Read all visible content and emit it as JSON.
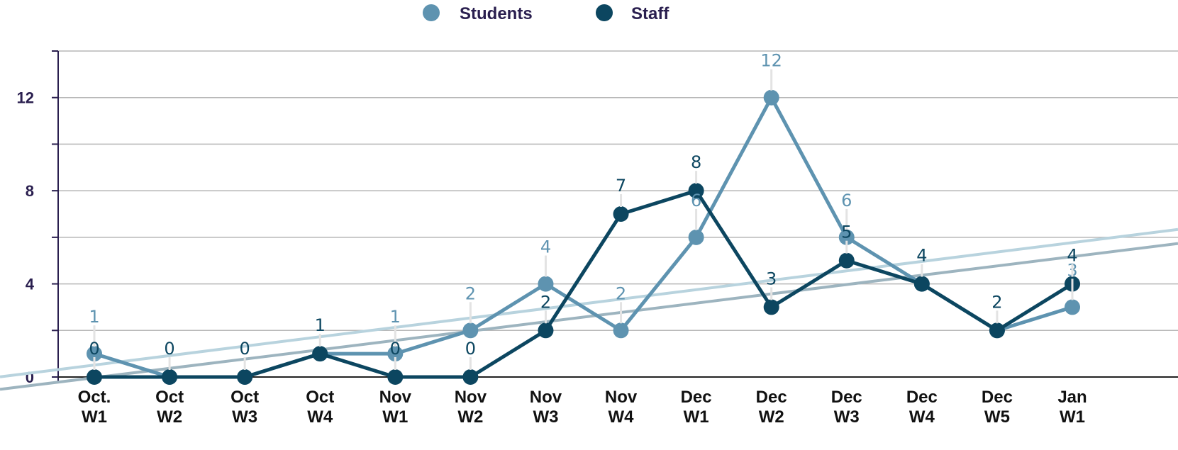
{
  "chart_data": {
    "type": "line",
    "categories": [
      [
        "Oct.",
        "W1"
      ],
      [
        "Oct",
        "W2"
      ],
      [
        "Oct",
        "W3"
      ],
      [
        "Oct",
        "W4"
      ],
      [
        "Nov",
        "W1"
      ],
      [
        "Nov",
        "W2"
      ],
      [
        "Nov",
        "W3"
      ],
      [
        "Nov",
        "W4"
      ],
      [
        "Dec",
        "W1"
      ],
      [
        "Dec",
        "W2"
      ],
      [
        "Dec",
        "W3"
      ],
      [
        "Dec",
        "W4"
      ],
      [
        "Dec",
        "W5"
      ],
      [
        "Jan",
        "W1"
      ]
    ],
    "series": [
      {
        "name": "Students",
        "color": "#5e93b0",
        "trend_color": "#b8d3de",
        "values": [
          1,
          0,
          0,
          1,
          1,
          2,
          4,
          2,
          6,
          12,
          6,
          4,
          2,
          3
        ],
        "labels": [
          "1",
          "",
          "",
          "",
          "1",
          "2",
          "4",
          "2",
          "6",
          "12",
          "6",
          "",
          "",
          "3"
        ]
      },
      {
        "name": "Staff",
        "color": "#0c4660",
        "trend_color": "#9db4bf",
        "values": [
          0,
          0,
          0,
          1,
          0,
          0,
          2,
          7,
          8,
          3,
          5,
          4,
          2,
          4
        ],
        "labels": [
          "0",
          "0",
          "0",
          "1",
          "0",
          "0",
          "2",
          "7",
          "8",
          "3",
          "5",
          "4",
          "2",
          "4"
        ]
      }
    ],
    "ylim": [
      0,
      14
    ],
    "yticks": [
      0,
      4,
      8,
      12
    ],
    "grid": true,
    "legend": "top-center",
    "trendlines": true,
    "xlabel": "",
    "ylabel": "",
    "title": ""
  }
}
